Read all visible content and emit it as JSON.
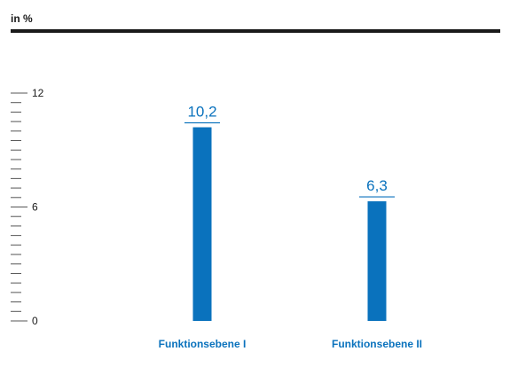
{
  "unit_label": "in %",
  "colors": {
    "bar": "#0a72bd",
    "category_text": "#0a72bd",
    "header_rule": "#1a1a1a",
    "axis": "#555555"
  },
  "chart_data": {
    "type": "bar",
    "categories": [
      "Funktionsebene I",
      "Funktionsebene II"
    ],
    "values": [
      10.2,
      6.3
    ],
    "value_labels": [
      "10,2",
      "6,3"
    ],
    "ylabel": "in %",
    "ylim": [
      0,
      12
    ],
    "yticks": [
      0,
      6,
      12
    ],
    "ytick_labels": [
      "0",
      "6",
      "12"
    ],
    "minor_tick_step": 0.5,
    "grid": false,
    "legend": "none"
  }
}
